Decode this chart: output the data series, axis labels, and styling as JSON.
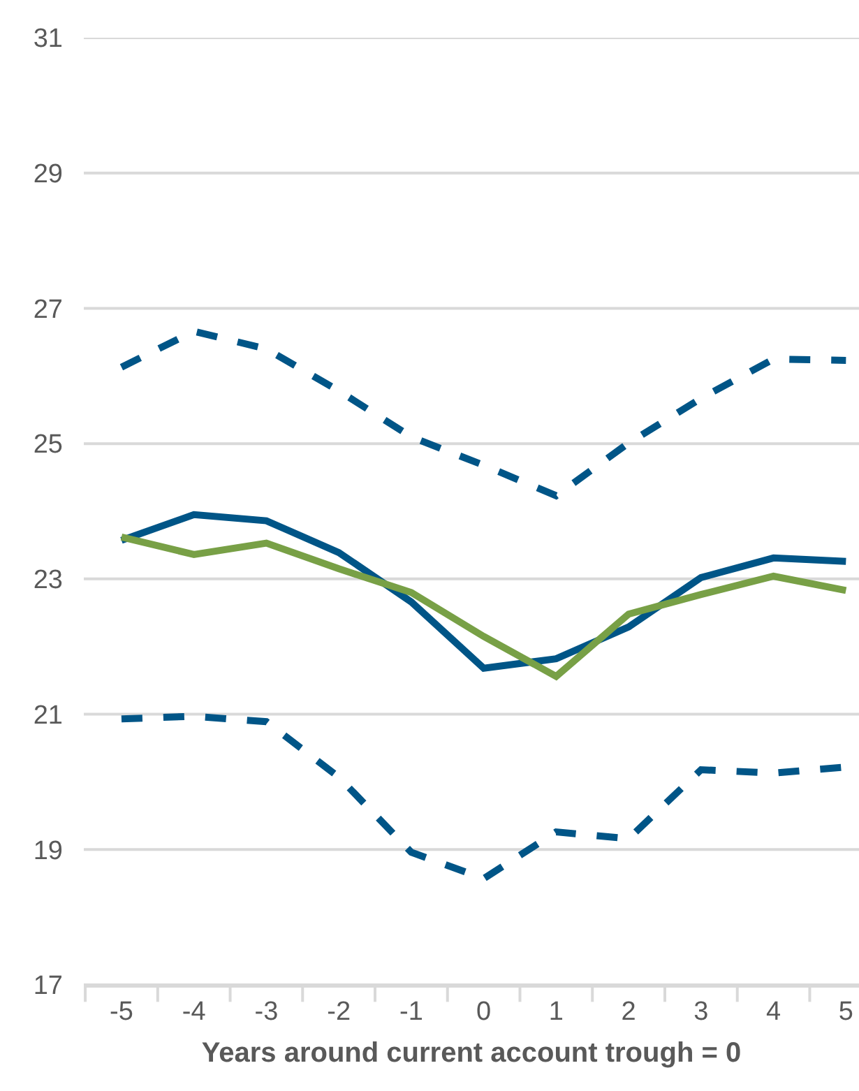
{
  "chart_data": {
    "type": "line",
    "xlabel": "Years around current account trough = 0",
    "categories": [
      "-5",
      "-4",
      "-3",
      "-2",
      "-1",
      "0",
      "1",
      "2",
      "3",
      "4",
      "5"
    ],
    "series": [
      {
        "color": "#005587",
        "line_style": "dashed",
        "values": [
          26.13,
          26.66,
          26.4,
          25.78,
          25.1,
          24.68,
          24.23,
          25.01,
          25.67,
          26.25,
          26.23
        ]
      },
      {
        "color": "#005587",
        "line_style": "dashed",
        "values": [
          20.93,
          20.97,
          20.89,
          20.07,
          18.96,
          18.57,
          19.26,
          19.16,
          20.18,
          20.13,
          20.22
        ]
      },
      {
        "color": "#005587",
        "line_style": "solid",
        "values": [
          23.57,
          23.95,
          23.86,
          23.39,
          22.66,
          21.68,
          21.82,
          22.29,
          23.02,
          23.31,
          23.26
        ]
      },
      {
        "color": "#78a046",
        "line_style": "solid",
        "values": [
          23.62,
          23.36,
          23.53,
          23.15,
          22.8,
          22.15,
          21.56,
          22.48,
          22.77,
          23.04,
          22.83
        ]
      }
    ],
    "ylim": [
      17,
      31
    ],
    "yticks": [
      17,
      19,
      21,
      23,
      25,
      27,
      29,
      31
    ],
    "grid": "y",
    "marker": "none"
  }
}
